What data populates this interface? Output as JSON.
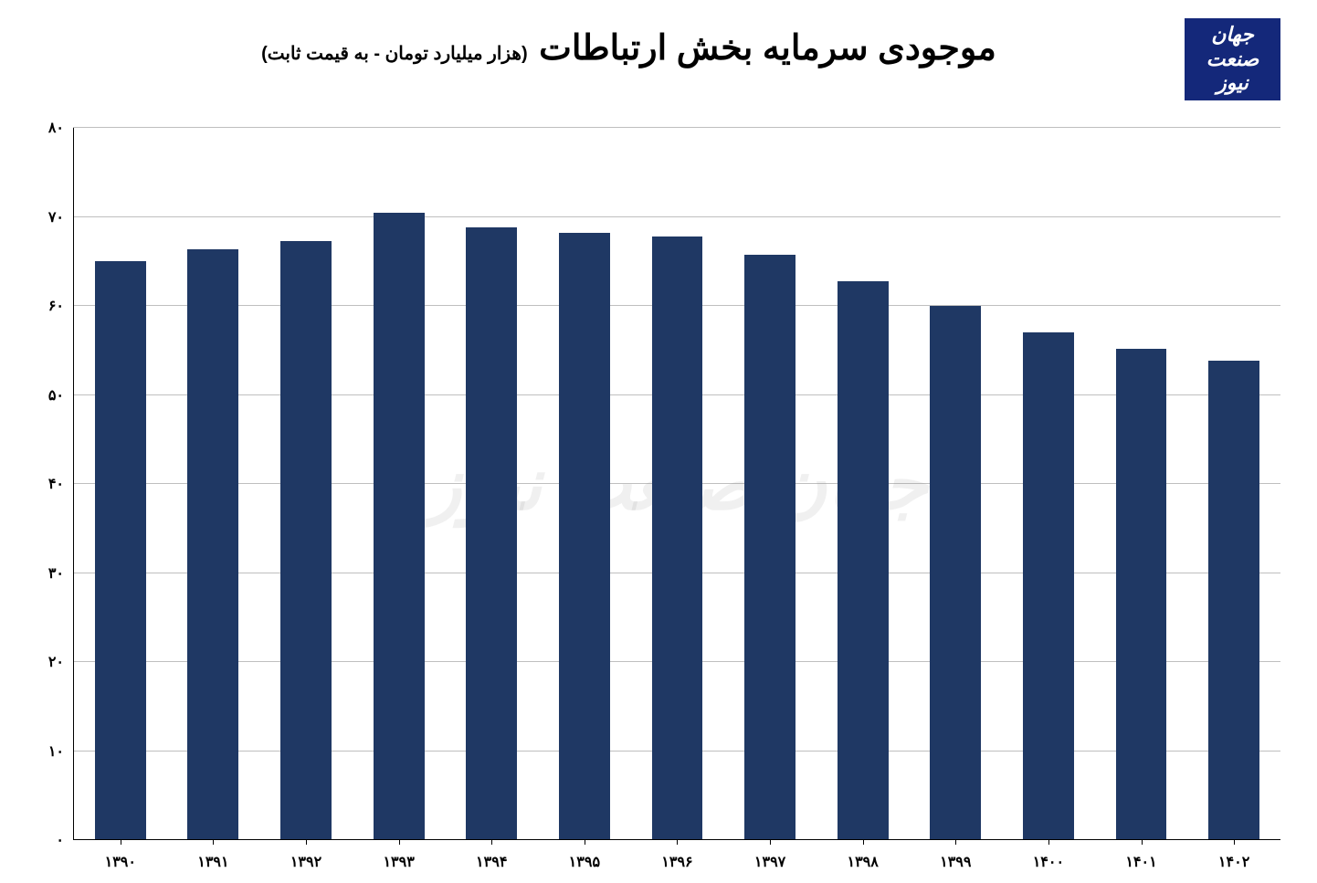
{
  "chart": {
    "type": "bar",
    "title": "موجودی سرمایه بخش ارتباطات",
    "subtitle": "(هزار میلیارد تومان - به قیمت ثابت)",
    "logo_text": "جهان صنعت نیوز",
    "watermark": "جهان صنعت نیوز",
    "background_color": "#ffffff",
    "bar_color": "#1f3864",
    "logo_bg": "#14287a",
    "grid_color": "#bfbfbf",
    "axis_color": "#000000",
    "text_color": "#000000",
    "title_fontsize": 38,
    "subtitle_fontsize": 20,
    "axis_label_fontsize": 16,
    "ylim": [
      0,
      80
    ],
    "ytick_step": 10,
    "yticks": [
      0,
      10,
      20,
      30,
      40,
      50,
      60,
      70,
      80
    ],
    "ytick_labels": [
      "۰",
      "۱۰",
      "۲۰",
      "۳۰",
      "۴۰",
      "۵۰",
      "۶۰",
      "۷۰",
      "۸۰"
    ],
    "categories": [
      "۱۳۹۰",
      "۱۳۹۱",
      "۱۳۹۲",
      "۱۳۹۳",
      "۱۳۹۴",
      "۱۳۹۵",
      "۱۳۹۶",
      "۱۳۹۷",
      "۱۳۹۸",
      "۱۳۹۹",
      "۱۴۰۰",
      "۱۴۰۱",
      "۱۴۰۲"
    ],
    "values": [
      65,
      66.3,
      67.3,
      70.4,
      68.8,
      68.2,
      67.8,
      65.7,
      62.8,
      60,
      57,
      55.2,
      53.8
    ],
    "bar_width": 0.55
  }
}
